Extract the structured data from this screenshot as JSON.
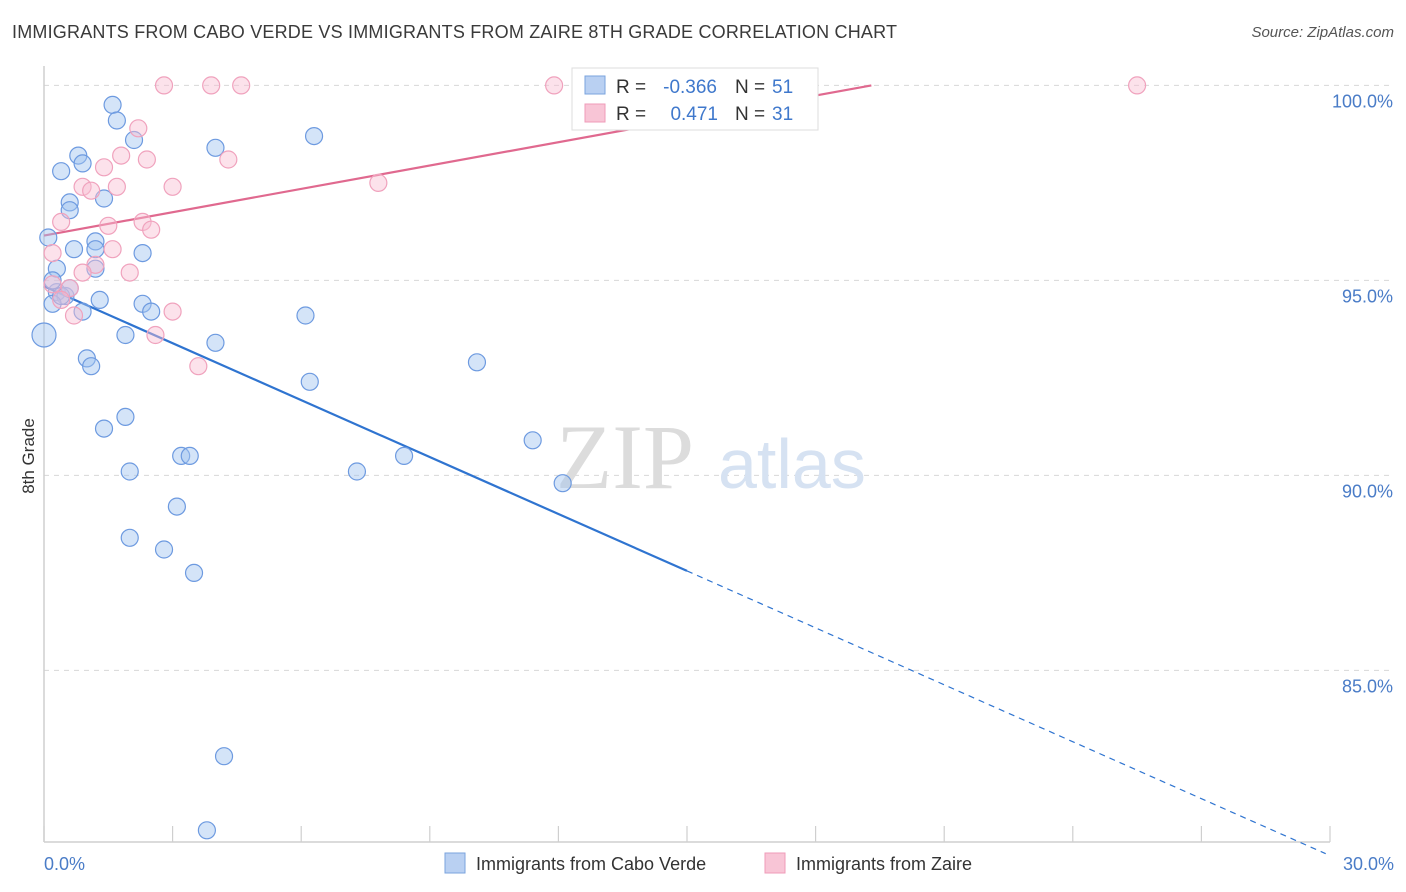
{
  "title": "IMMIGRANTS FROM CABO VERDE VS IMMIGRANTS FROM ZAIRE 8TH GRADE CORRELATION CHART",
  "source": "Source: ZipAtlas.com",
  "watermark": {
    "bold": "ZIP",
    "light": "atlas"
  },
  "colors": {
    "blue": "#5b8fdc",
    "blue_line": "#2f74d0",
    "pink": "#ef8fb0",
    "pink_line": "#e0698f",
    "axis_text": "#4a7cc7"
  },
  "chart_data": {
    "type": "scatter",
    "title": "IMMIGRANTS FROM CABO VERDE VS IMMIGRANTS FROM ZAIRE 8TH GRADE CORRELATION CHART",
    "xlabel": "",
    "ylabel": "8th Grade",
    "xlim": [
      0,
      30
    ],
    "ylim": [
      80.6,
      100.6
    ],
    "x_tick_labels": [
      {
        "value": 0,
        "label": "0.0%"
      },
      {
        "value": 30,
        "label": "30.0%"
      }
    ],
    "y_ticks": [
      {
        "value": 100,
        "label": "100.0%"
      },
      {
        "value": 95,
        "label": "95.0%"
      },
      {
        "value": 90,
        "label": "90.0%"
      },
      {
        "value": 85,
        "label": "85.0%"
      }
    ],
    "stats": [
      {
        "r_label": "R =",
        "r_value": "-0.366",
        "n_label": "N =",
        "n_value": "51"
      },
      {
        "r_label": "R =",
        "r_value": "0.471",
        "n_label": "N =",
        "n_value": "31"
      }
    ],
    "series": [
      {
        "name": "Immigrants from Cabo Verde",
        "color": "#5b8fdc",
        "trend": {
          "x0": 0,
          "y0": 94.85,
          "x_solid_end": 15.0,
          "x1": 29.9,
          "y1": 80.3
        },
        "points": [
          {
            "x": 1.6,
            "y": 99.5
          },
          {
            "x": 1.7,
            "y": 99.1
          },
          {
            "x": 2.1,
            "y": 98.6
          },
          {
            "x": 0.8,
            "y": 98.2
          },
          {
            "x": 0.4,
            "y": 97.8
          },
          {
            "x": 0.9,
            "y": 98.0
          },
          {
            "x": 0.6,
            "y": 97.0
          },
          {
            "x": 1.4,
            "y": 97.1
          },
          {
            "x": 0.6,
            "y": 96.8
          },
          {
            "x": 0.1,
            "y": 96.1
          },
          {
            "x": 1.2,
            "y": 96.0
          },
          {
            "x": 0.7,
            "y": 95.8
          },
          {
            "x": 1.2,
            "y": 95.8
          },
          {
            "x": 2.3,
            "y": 95.7
          },
          {
            "x": 0.3,
            "y": 95.3
          },
          {
            "x": 1.2,
            "y": 95.3
          },
          {
            "x": 0.3,
            "y": 94.7
          },
          {
            "x": 0.5,
            "y": 94.6
          },
          {
            "x": 1.3,
            "y": 94.5
          },
          {
            "x": 2.3,
            "y": 94.4
          },
          {
            "x": 0.2,
            "y": 94.4
          },
          {
            "x": 0.9,
            "y": 94.2
          },
          {
            "x": 2.5,
            "y": 94.2
          },
          {
            "x": 0.0,
            "y": 93.6
          },
          {
            "x": 1.9,
            "y": 93.6
          },
          {
            "x": 4.0,
            "y": 93.4
          },
          {
            "x": 1.0,
            "y": 93.0
          },
          {
            "x": 1.1,
            "y": 92.8
          },
          {
            "x": 6.1,
            "y": 94.1
          },
          {
            "x": 6.2,
            "y": 92.4
          },
          {
            "x": 6.3,
            "y": 98.7
          },
          {
            "x": 4.0,
            "y": 98.4
          },
          {
            "x": 10.1,
            "y": 92.9
          },
          {
            "x": 1.4,
            "y": 91.2
          },
          {
            "x": 1.9,
            "y": 91.5
          },
          {
            "x": 3.2,
            "y": 90.5
          },
          {
            "x": 3.4,
            "y": 90.5
          },
          {
            "x": 8.4,
            "y": 90.5
          },
          {
            "x": 11.4,
            "y": 90.9
          },
          {
            "x": 2.0,
            "y": 90.1
          },
          {
            "x": 7.3,
            "y": 90.1
          },
          {
            "x": 12.1,
            "y": 89.8
          },
          {
            "x": 3.1,
            "y": 89.2
          },
          {
            "x": 2.0,
            "y": 88.4
          },
          {
            "x": 2.8,
            "y": 88.1
          },
          {
            "x": 3.5,
            "y": 87.5
          },
          {
            "x": 4.2,
            "y": 82.8
          },
          {
            "x": 3.8,
            "y": 80.9
          },
          {
            "x": 0.4,
            "y": 94.6
          },
          {
            "x": 0.6,
            "y": 94.8
          },
          {
            "x": 0.2,
            "y": 95.0
          }
        ]
      },
      {
        "name": "Immigrants from Zaire",
        "color": "#ef8fb0",
        "trend": {
          "x0": 0,
          "y0": 96.15,
          "x1": 19.3,
          "y1": 100.0
        },
        "points": [
          {
            "x": 2.8,
            "y": 100.0
          },
          {
            "x": 3.9,
            "y": 100.0
          },
          {
            "x": 4.6,
            "y": 100.0
          },
          {
            "x": 11.9,
            "y": 100.0
          },
          {
            "x": 25.5,
            "y": 100.0
          },
          {
            "x": 2.2,
            "y": 98.9
          },
          {
            "x": 1.8,
            "y": 98.2
          },
          {
            "x": 2.4,
            "y": 98.1
          },
          {
            "x": 4.3,
            "y": 98.1
          },
          {
            "x": 1.4,
            "y": 97.9
          },
          {
            "x": 0.9,
            "y": 97.4
          },
          {
            "x": 1.1,
            "y": 97.3
          },
          {
            "x": 1.7,
            "y": 97.4
          },
          {
            "x": 3.0,
            "y": 97.4
          },
          {
            "x": 7.8,
            "y": 97.5
          },
          {
            "x": 0.4,
            "y": 96.5
          },
          {
            "x": 1.5,
            "y": 96.4
          },
          {
            "x": 2.3,
            "y": 96.5
          },
          {
            "x": 2.5,
            "y": 96.3
          },
          {
            "x": 0.2,
            "y": 95.7
          },
          {
            "x": 1.6,
            "y": 95.8
          },
          {
            "x": 1.2,
            "y": 95.4
          },
          {
            "x": 0.9,
            "y": 95.2
          },
          {
            "x": 2.0,
            "y": 95.2
          },
          {
            "x": 0.6,
            "y": 94.8
          },
          {
            "x": 0.2,
            "y": 94.9
          },
          {
            "x": 0.4,
            "y": 94.5
          },
          {
            "x": 0.7,
            "y": 94.1
          },
          {
            "x": 3.0,
            "y": 94.2
          },
          {
            "x": 2.6,
            "y": 93.6
          },
          {
            "x": 3.6,
            "y": 92.8
          }
        ]
      }
    ]
  }
}
